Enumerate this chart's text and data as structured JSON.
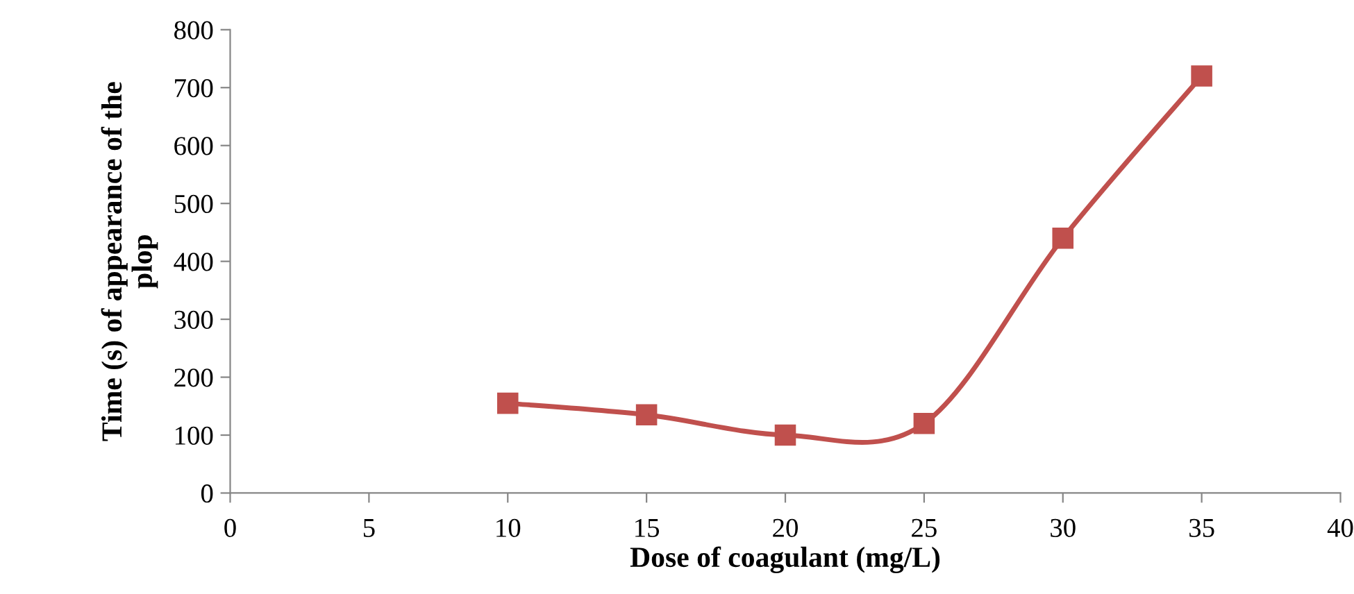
{
  "chart_data": {
    "type": "line",
    "xlabel": "Dose of coagulant (mg/L)",
    "ylabel": "Time (s) of appearance of the\nplop",
    "x": [
      10,
      15,
      20,
      25,
      30,
      35
    ],
    "series": [
      {
        "color": "#c0504d",
        "values": [
          155,
          135,
          100,
          120,
          440,
          720
        ]
      }
    ],
    "xlim": [
      0,
      40
    ],
    "xticks": [
      0,
      5,
      10,
      15,
      20,
      25,
      30,
      35,
      40
    ],
    "ylim": [
      0,
      800
    ],
    "yticks": [
      0,
      100,
      200,
      300,
      400,
      500,
      600,
      700,
      800
    ],
    "grid": false,
    "legend": false,
    "marker": "square",
    "line_style": "solid"
  }
}
